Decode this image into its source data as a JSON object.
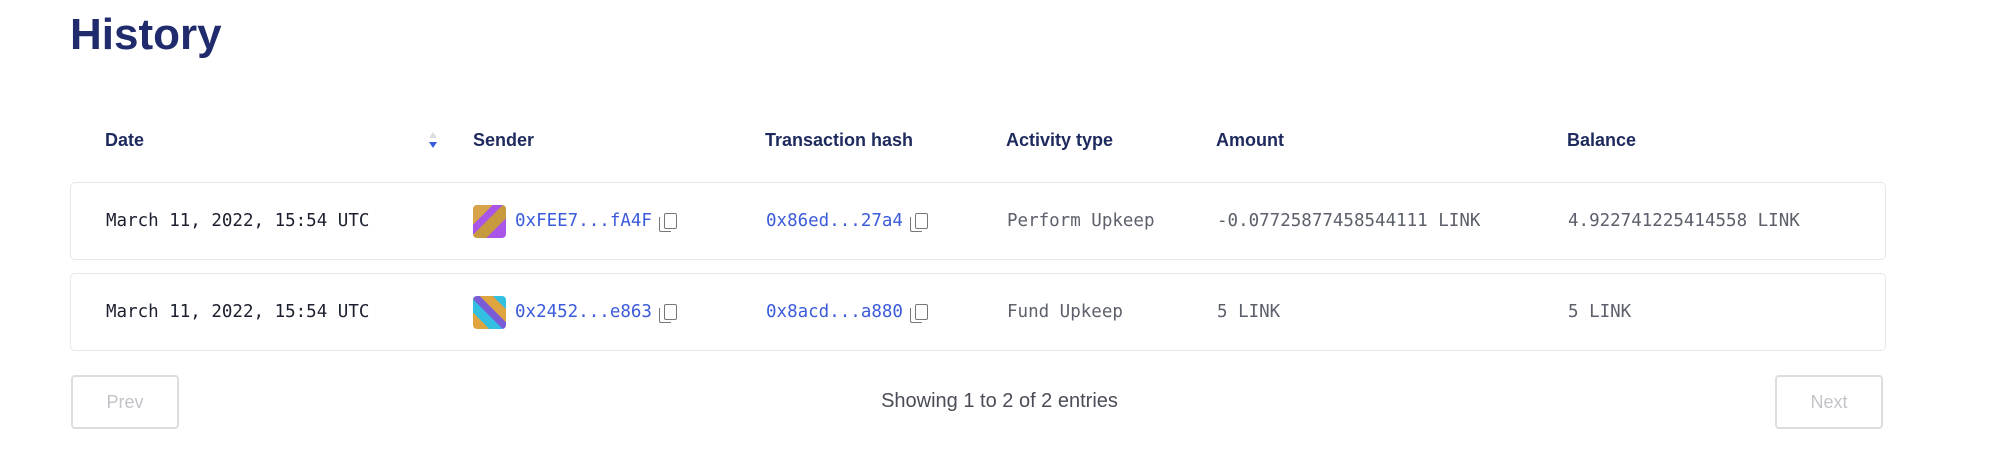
{
  "title": "History",
  "columns": [
    "Date",
    "Sender",
    "Transaction hash",
    "Activity type",
    "Amount",
    "Balance"
  ],
  "sort": {
    "column": "Date",
    "direction": "descending"
  },
  "rows": [
    {
      "date": "March 11, 2022, 15:54 UTC",
      "sender": "0xFEE7...fA4F",
      "tx_hash": "0x86ed...27a4",
      "activity": "Perform Upkeep",
      "amount": "-0.07725877458544111 LINK",
      "balance": "4.922741225414558 LINK",
      "avatar_colors": [
        "#d7a34a",
        "#a855e8",
        "#c79a3f"
      ]
    },
    {
      "date": "March 11, 2022, 15:54 UTC",
      "sender": "0x2452...e863",
      "tx_hash": "0x8acd...a880",
      "activity": "Fund Upkeep",
      "amount": "5 LINK",
      "balance": "5 LINK",
      "avatar_colors": [
        "#e0a43f",
        "#33bfe0",
        "#7a5cd6"
      ]
    }
  ],
  "pagination": {
    "prev": "Prev",
    "next": "Next",
    "info": "Showing 1 to 2 of 2 entries"
  },
  "colors": {
    "heading": "#1f2b6c",
    "link": "#3b5bdb",
    "sort_arrow": "#3b5bdb"
  }
}
